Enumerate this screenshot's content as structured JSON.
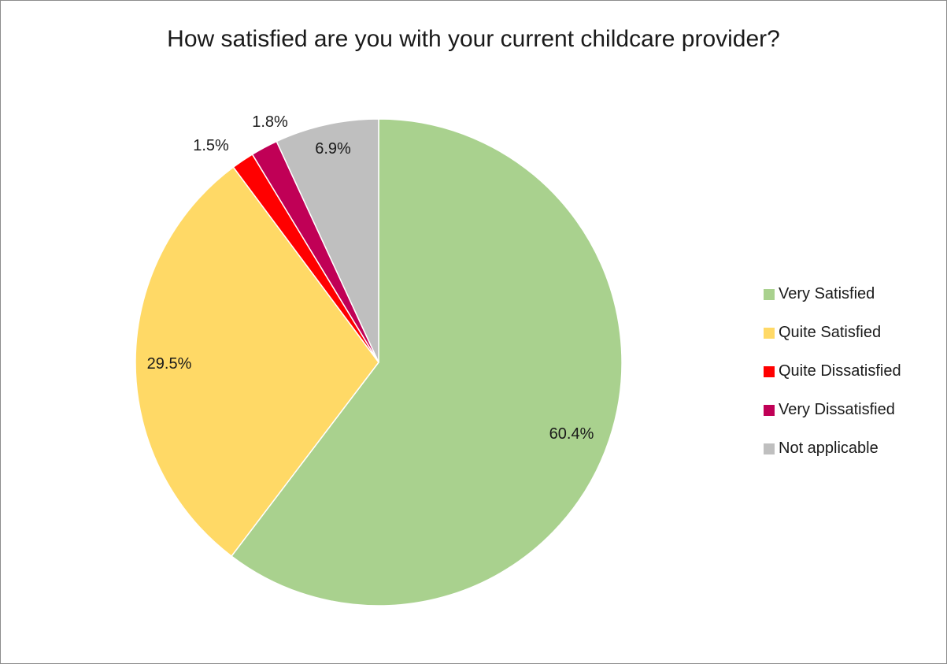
{
  "chart_data": {
    "type": "pie",
    "title": "How satisfied are you with your current childcare provider?",
    "legend_position": "right",
    "slices": [
      {
        "name": "Very Satisfied",
        "value": 60.4,
        "label": "60.4%",
        "color": "#a9d18e"
      },
      {
        "name": "Quite Satisfied",
        "value": 29.5,
        "label": "29.5%",
        "color": "#ffd966"
      },
      {
        "name": "Quite Dissatisfied",
        "value": 1.5,
        "label": "1.5%",
        "color": "#ff0000"
      },
      {
        "name": "Very Dissatisfied",
        "value": 1.8,
        "label": "1.8%",
        "color": "#c00056"
      },
      {
        "name": "Not applicable",
        "value": 6.9,
        "label": "6.9%",
        "color": "#bfbfbf"
      }
    ],
    "legend": [
      {
        "name": "Very Satisfied",
        "color": "#a9d18e"
      },
      {
        "name": "Quite Satisfied",
        "color": "#ffd966"
      },
      {
        "name": "Quite Dissatisfied",
        "color": "#ff0000"
      },
      {
        "name": "Very Dissatisfied",
        "color": "#c00056"
      },
      {
        "name": "Not applicable",
        "color": "#bfbfbf"
      }
    ]
  }
}
